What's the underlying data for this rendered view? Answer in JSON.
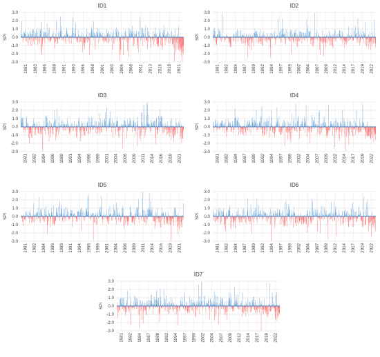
{
  "chart_data": [
    {
      "type": "bar",
      "title": "ID1",
      "ylabel": "SPI",
      "ylim": [
        -3.0,
        3.0
      ],
      "yticks": [
        "3.0",
        "2.0",
        "1.0",
        "0.0",
        "-1.0",
        "-2.0",
        "-3.0"
      ],
      "x_range": [
        1981,
        2022
      ],
      "xticks": [
        "1981",
        "1983",
        "1986",
        "1988",
        "1991",
        "1993",
        "1996",
        "1998",
        "2001",
        "2003",
        "2006",
        "2008",
        "2011",
        "2013",
        "2016",
        "2018",
        "2021"
      ],
      "grid": true,
      "colors": {
        "positive": "#5b9bd5",
        "negative": "#ff5b5b",
        "axis": "#4a7fc0"
      },
      "seed": 11,
      "dry_end": 0.9
    },
    {
      "type": "bar",
      "title": "ID2",
      "ylabel": "SPI",
      "ylim": [
        -3.0,
        3.0
      ],
      "yticks": [
        "3.0",
        "2.0",
        "1.0",
        "0.0",
        "-1.0",
        "-2.0",
        "-3.0"
      ],
      "x_range": [
        1981,
        2022
      ],
      "xticks": [
        "1981",
        "1982",
        "1984",
        "1987",
        "1989",
        "1992",
        "1994",
        "1997",
        "1999",
        "2002",
        "2004",
        "2007",
        "2009",
        "2012",
        "2014",
        "2017",
        "2019",
        "2022"
      ],
      "grid": true,
      "colors": {
        "positive": "#5b9bd5",
        "negative": "#ff5b5b",
        "axis": "#4a7fc0"
      },
      "seed": 23,
      "dry_end": 0.7
    },
    {
      "type": "bar",
      "title": "ID3",
      "ylabel": "SPI",
      "ylim": [
        -3.0,
        3.0
      ],
      "yticks": [
        "3.0",
        "2.0",
        "1.0",
        "0.0",
        "-1.0",
        "-2.0",
        "-3.0"
      ],
      "x_range": [
        1981,
        2022
      ],
      "xticks": [
        "1981",
        "1982",
        "1984",
        "1986",
        "1989",
        "1991",
        "1994",
        "1996",
        "1999",
        "2001",
        "2004",
        "2006",
        "2009",
        "2011",
        "2014",
        "2016",
        "2019",
        "2021"
      ],
      "grid": true,
      "colors": {
        "positive": "#5b9bd5",
        "negative": "#ff5b5b",
        "axis": "#4a7fc0"
      },
      "seed": 37,
      "dry_end": 0.5
    },
    {
      "type": "bar",
      "title": "ID4",
      "ylabel": "SPI",
      "ylim": [
        -3.0,
        3.0
      ],
      "yticks": [
        "3.0",
        "2.0",
        "1.0",
        "0.0",
        "-1.0",
        "-2.0",
        "-3.0"
      ],
      "x_range": [
        1981,
        2022
      ],
      "xticks": [
        "1981",
        "1982",
        "1984",
        "1987",
        "1989",
        "1992",
        "1994",
        "1997",
        "1999",
        "2002",
        "2004",
        "2007",
        "2009",
        "2012",
        "2014",
        "2017",
        "2019",
        "2022"
      ],
      "grid": true,
      "colors": {
        "positive": "#5b9bd5",
        "negative": "#ff5b5b",
        "axis": "#4a7fc0"
      },
      "seed": 41,
      "dry_end": 0.8
    },
    {
      "type": "bar",
      "title": "ID5",
      "ylabel": "SPI",
      "ylim": [
        -3.0,
        3.0
      ],
      "yticks": [
        "3.0",
        "2.0",
        "1.0",
        "0.0",
        "-1.0",
        "-2.0",
        "-3.0"
      ],
      "x_range": [
        1981,
        2022
      ],
      "xticks": [
        "1981",
        "1982",
        "1984",
        "1986",
        "1989",
        "1991",
        "1994",
        "1996",
        "1999",
        "2001",
        "2004",
        "2006",
        "2009",
        "2011",
        "2014",
        "2016",
        "2019",
        "2021"
      ],
      "grid": true,
      "colors": {
        "positive": "#5b9bd5",
        "negative": "#ff5b5b",
        "axis": "#4a7fc0"
      },
      "seed": 53,
      "dry_end": 0.5
    },
    {
      "type": "bar",
      "title": "ID6",
      "ylabel": "SPI",
      "ylim": [
        -3.0,
        3.0
      ],
      "yticks": [
        "3.0",
        "2.0",
        "1.0",
        "0.0",
        "-1.0",
        "-2.0",
        "-3.0"
      ],
      "x_range": [
        1981,
        2022
      ],
      "xticks": [
        "1981",
        "1982",
        "1984",
        "1987",
        "1989",
        "1992",
        "1994",
        "1997",
        "1999",
        "2002",
        "2004",
        "2007",
        "2009",
        "2012",
        "2014",
        "2017",
        "2019",
        "2022"
      ],
      "grid": true,
      "colors": {
        "positive": "#5b9bd5",
        "negative": "#ff5b5b",
        "axis": "#4a7fc0"
      },
      "seed": 67,
      "dry_end": 1.0
    },
    {
      "type": "bar",
      "title": "ID7",
      "ylabel": "SPI",
      "ylim": [
        -3.0,
        3.0
      ],
      "yticks": [
        "3.0",
        "2.0",
        "1.0",
        "0.0",
        "-1.0",
        "-2.0",
        "-3.0"
      ],
      "x_range": [
        1981,
        2022
      ],
      "xticks": [
        "1981",
        "1982",
        "1984",
        "1987",
        "1989",
        "1992",
        "1994",
        "1997",
        "1999",
        "2002",
        "2004",
        "2007",
        "2009",
        "2012",
        "2014",
        "2017",
        "2019",
        "2022"
      ],
      "grid": true,
      "colors": {
        "positive": "#5b9bd5",
        "negative": "#ff5b5b",
        "axis": "#4a7fc0"
      },
      "seed": 79,
      "dry_end": 0.8
    }
  ]
}
